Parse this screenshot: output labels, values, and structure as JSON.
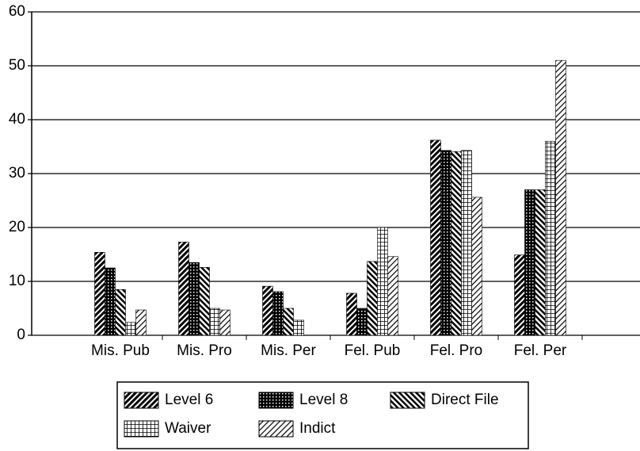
{
  "chart_data": {
    "type": "bar",
    "categories": [
      "Mis. Pub",
      "Mis. Pro",
      "Mis. Per",
      "Fel. Pub",
      "Fel. Pro",
      "Fel. Per"
    ],
    "series": [
      {
        "name": "Level 6",
        "color": "#000000",
        "values": [
          15.4,
          17.3,
          9.1,
          7.8,
          36.2,
          14.9
        ]
      },
      {
        "name": "Level 8",
        "color": "#000000",
        "values": [
          12.5,
          13.5,
          8.1,
          5,
          34.3,
          27
        ]
      },
      {
        "name": "Direct File",
        "color": "#000000",
        "values": [
          8.5,
          12.6,
          5,
          13.7,
          34.1,
          27
        ]
      },
      {
        "name": "Waiver",
        "color": "#000000",
        "values": [
          2.4,
          5,
          2.8,
          20,
          34.3,
          36
        ]
      },
      {
        "name": "Indict",
        "color": "#000000",
        "values": [
          4.7,
          4.7,
          null,
          14.6,
          25.6,
          51
        ]
      }
    ],
    "ylim": [
      0,
      60
    ],
    "yticks": [
      0,
      10,
      20,
      30,
      40,
      50,
      60
    ],
    "grid": true,
    "legend": "bottom"
  }
}
